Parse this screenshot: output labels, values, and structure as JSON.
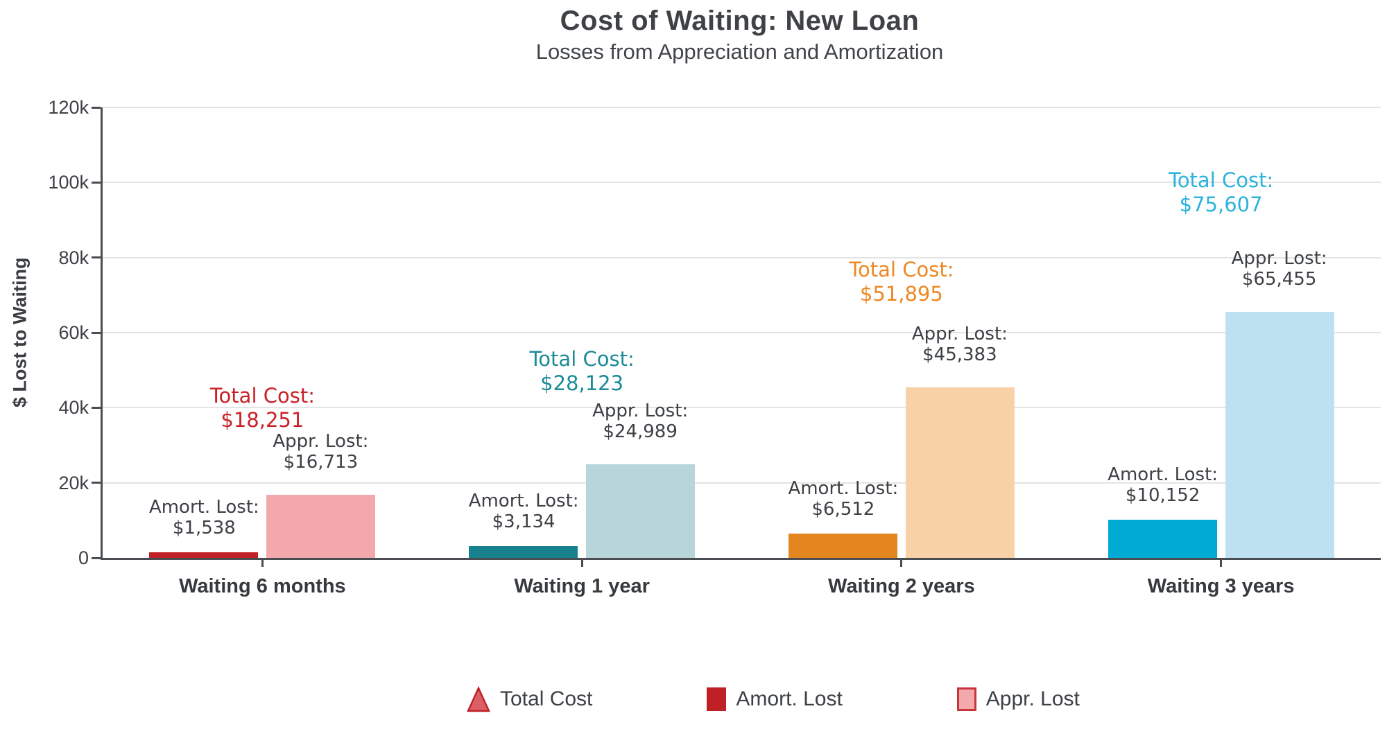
{
  "chart_data": {
    "type": "bar",
    "title": "Cost of Waiting: New Loan",
    "subtitle": "Losses from Appreciation and Amortization",
    "ylabel": "$ Lost to Waiting",
    "ylim": [
      0,
      120000
    ],
    "grid": true,
    "legend_position": "bottom",
    "yticks": [
      {
        "value": 0,
        "label": "0"
      },
      {
        "value": 20000,
        "label": "20k"
      },
      {
        "value": 40000,
        "label": "40k"
      },
      {
        "value": 60000,
        "label": "60k"
      },
      {
        "value": 80000,
        "label": "80k"
      },
      {
        "value": 100000,
        "label": "100k"
      },
      {
        "value": 120000,
        "label": "120k"
      }
    ],
    "categories": [
      "Waiting 6 months",
      "Waiting 1 year",
      "Waiting 2 years",
      "Waiting 3 years"
    ],
    "series": [
      {
        "name": "Amort. Lost",
        "values": [
          1538,
          3134,
          6512,
          10152
        ]
      },
      {
        "name": "Appr. Lost",
        "values": [
          16713,
          24989,
          45383,
          65455
        ]
      },
      {
        "name": "Total Cost",
        "values": [
          18251,
          28123,
          51895,
          75607
        ]
      }
    ],
    "groups": [
      {
        "category": "Waiting 6 months",
        "amort": {
          "label": "Amort. Lost:",
          "value": 1538,
          "display": "$1,538",
          "bar_color": "#c02026"
        },
        "appr": {
          "label": "Appr. Lost:",
          "value": 16713,
          "display": "$16,713",
          "bar_color": "#f3a8ac"
        },
        "total": {
          "label": "Total Cost:",
          "value": 18251,
          "display": "$18,251",
          "text_color": "#cb2027"
        }
      },
      {
        "category": "Waiting 1 year",
        "amort": {
          "label": "Amort. Lost:",
          "value": 3134,
          "display": "$3,134",
          "bar_color": "#17828e"
        },
        "appr": {
          "label": "Appr. Lost:",
          "value": 24989,
          "display": "$24,989",
          "bar_color": "#b8d5d9"
        },
        "total": {
          "label": "Total Cost:",
          "value": 28123,
          "display": "$28,123",
          "text_color": "#1b8b97"
        }
      },
      {
        "category": "Waiting 2 years",
        "amort": {
          "label": "Amort. Lost:",
          "value": 6512,
          "display": "$6,512",
          "bar_color": "#e3861f"
        },
        "appr": {
          "label": "Appr. Lost:",
          "value": 45383,
          "display": "$45,383",
          "bar_color": "#f8d1a7"
        },
        "total": {
          "label": "Total Cost:",
          "value": 51895,
          "display": "$51,895",
          "text_color": "#ee8823"
        }
      },
      {
        "category": "Waiting 3 years",
        "amort": {
          "label": "Amort. Lost:",
          "value": 10152,
          "display": "$10,152",
          "bar_color": "#00abd3"
        },
        "appr": {
          "label": "Appr. Lost:",
          "value": 65455,
          "display": "$65,455",
          "bar_color": "#bee1f1"
        },
        "total": {
          "label": "Total Cost:",
          "value": 75607,
          "display": "$75,607",
          "text_color": "#2ab3dc"
        }
      }
    ],
    "legend": [
      {
        "label": "Total Cost",
        "shape": "triangle",
        "fill": "#da6065",
        "border": "#bf2127"
      },
      {
        "label": "Amort. Lost",
        "shape": "square",
        "fill": "#bf2026",
        "border": "#bf2026"
      },
      {
        "label": "Appr. Lost",
        "shape": "square",
        "fill": "#f3a8ac",
        "border": "#c9353c"
      }
    ],
    "style": {
      "axis_color": "#4a4d52",
      "grid_color": "#e4e4e4",
      "text_color": "#3d4045",
      "title_color": "#3e4145"
    }
  }
}
